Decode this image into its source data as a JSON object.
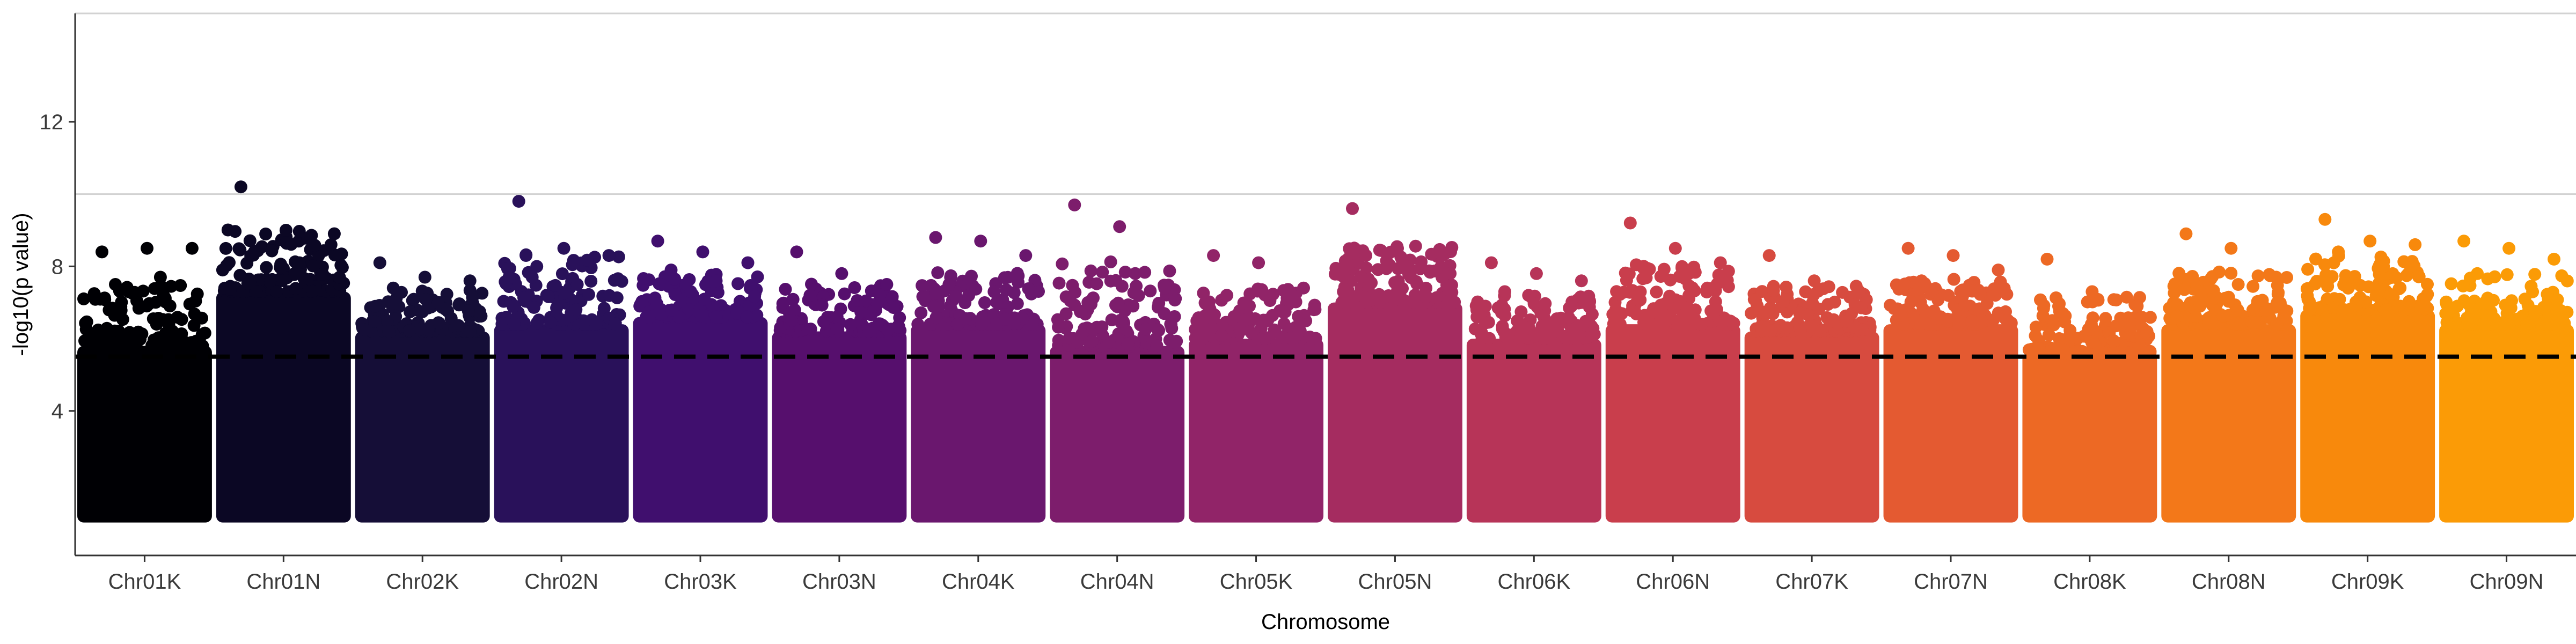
{
  "chart_data": {
    "type": "scatter",
    "subtype": "manhattan",
    "title": "",
    "xlabel": "Chromosome",
    "ylabel": "-log10(p value)",
    "ylim": [
      0,
      15
    ],
    "yticks": [
      4,
      8,
      12
    ],
    "y_base": 1.0,
    "threshold": 5.5,
    "threshold_style": "dashed",
    "gridlines_y": [
      10,
      15
    ],
    "categories": [
      "Chr01K",
      "Chr01N",
      "Chr02K",
      "Chr02N",
      "Chr03K",
      "Chr03N",
      "Chr04K",
      "Chr04N",
      "Chr05K",
      "Chr05N",
      "Chr06K",
      "Chr06N",
      "Chr07K",
      "Chr07N",
      "Chr08K",
      "Chr08N",
      "Chr09K",
      "Chr09N"
    ],
    "colors": [
      "#000004",
      "#0b0724",
      "#150e37",
      "#29115a",
      "#400f6e",
      "#560f6d",
      "#6a176e",
      "#7d1d6c",
      "#912468",
      "#a52c60",
      "#b73458",
      "#c93e4c",
      "#d74b3f",
      "#e45a31",
      "#ed6924",
      "#f37819",
      "#f8890c",
      "#fb9b06"
    ],
    "peak_values": [
      8.6,
      10.2,
      8.1,
      9.8,
      8.7,
      8.4,
      8.8,
      9.7,
      8.3,
      9.6,
      8.1,
      9.2,
      8.3,
      8.5,
      8.2,
      8.9,
      9.3,
      8.7
    ],
    "dense_upper": [
      5.8,
      7.3,
      6.2,
      6.4,
      6.6,
      6.2,
      6.4,
      5.8,
      6.0,
      7.0,
      6.0,
      6.4,
      6.2,
      6.4,
      5.6,
      6.4,
      6.8,
      6.4
    ],
    "notable_points": [
      {
        "chrom": "Chr01K",
        "y": [
          8.4,
          8.5,
          8.5,
          7.5,
          7.7,
          7.1,
          7.3
        ]
      },
      {
        "chrom": "Chr01N",
        "y": [
          10.2,
          9.0,
          8.6,
          8.4,
          8.1,
          7.9
        ]
      },
      {
        "chrom": "Chr02K",
        "y": [
          8.1,
          7.7,
          7.6,
          7.4,
          7.0
        ]
      },
      {
        "chrom": "Chr02N",
        "y": [
          9.8,
          8.5,
          8.3,
          7.7,
          7.5
        ]
      },
      {
        "chrom": "Chr03K",
        "y": [
          8.7,
          8.4,
          8.1,
          7.9,
          7.6
        ]
      },
      {
        "chrom": "Chr03N",
        "y": [
          8.4,
          7.8,
          7.5,
          7.2
        ]
      },
      {
        "chrom": "Chr04K",
        "y": [
          8.8,
          8.7,
          8.3,
          7.5,
          7.3
        ]
      },
      {
        "chrom": "Chr04N",
        "y": [
          9.7,
          9.1,
          7.4,
          7.0,
          6.9
        ]
      },
      {
        "chrom": "Chr05K",
        "y": [
          8.3,
          8.1,
          7.4,
          7.2
        ]
      },
      {
        "chrom": "Chr05N",
        "y": [
          9.6,
          8.5,
          8.3,
          8.3,
          7.9
        ]
      },
      {
        "chrom": "Chr06K",
        "y": [
          8.1,
          7.8,
          7.6,
          7.3
        ]
      },
      {
        "chrom": "Chr06N",
        "y": [
          9.2,
          8.5,
          8.1,
          8.0,
          7.8
        ]
      },
      {
        "chrom": "Chr07K",
        "y": [
          8.3,
          7.6,
          7.3
        ]
      },
      {
        "chrom": "Chr07N",
        "y": [
          8.5,
          8.3,
          7.9,
          7.6
        ]
      },
      {
        "chrom": "Chr08K",
        "y": [
          8.2,
          7.3,
          6.9
        ]
      },
      {
        "chrom": "Chr08N",
        "y": [
          8.9,
          8.5,
          7.7,
          7.3
        ]
      },
      {
        "chrom": "Chr09K",
        "y": [
          9.3,
          8.7,
          8.6,
          8.4,
          8.0
        ]
      },
      {
        "chrom": "Chr09N",
        "y": [
          8.7,
          8.5,
          8.2,
          7.8
        ]
      }
    ],
    "grid": true,
    "legend": "none"
  }
}
